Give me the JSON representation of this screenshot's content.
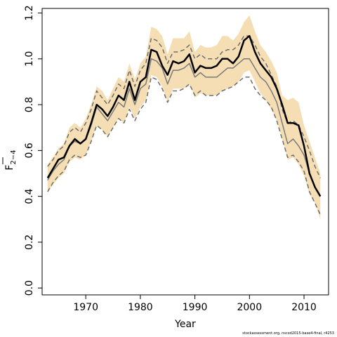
{
  "chart_data": {
    "type": "line",
    "title": "",
    "xlabel": "Year",
    "ylabel": {
      "base": "F",
      "subscript": "2−4"
    },
    "xlim": [
      1962,
      2014.5
    ],
    "ylim": [
      -0.03,
      1.22
    ],
    "xticks": [
      "1970",
      "1980",
      "1990",
      "2000",
      "2010"
    ],
    "yticks": [
      "0.0",
      "0.2",
      "0.4",
      "0.6",
      "0.8",
      "1.0",
      "1.2"
    ],
    "x": [
      1963,
      1964,
      1965,
      1966,
      1967,
      1968,
      1969,
      1970,
      1971,
      1972,
      1973,
      1974,
      1975,
      1976,
      1977,
      1978,
      1979,
      1980,
      1981,
      1982,
      1983,
      1984,
      1985,
      1986,
      1987,
      1988,
      1989,
      1990,
      1991,
      1992,
      1993,
      1994,
      1995,
      1996,
      1997,
      1998,
      1999,
      2000,
      2001,
      2002,
      2003,
      2004,
      2005,
      2006,
      2007,
      2008,
      2009,
      2010,
      2011,
      2012,
      2013
    ],
    "series": [
      {
        "role": "band_upper",
        "color": "#f5deb3",
        "values": [
          0.54,
          0.57,
          0.61,
          0.63,
          0.7,
          0.72,
          0.7,
          0.74,
          0.8,
          0.88,
          0.86,
          0.82,
          0.87,
          0.92,
          0.9,
          0.98,
          0.91,
          0.98,
          1.01,
          1.14,
          1.13,
          1.1,
          1.02,
          1.09,
          1.09,
          1.09,
          1.12,
          1.03,
          1.06,
          1.05,
          1.05,
          1.06,
          1.1,
          1.1,
          1.08,
          1.11,
          1.16,
          1.19,
          1.12,
          1.06,
          1.03,
          0.99,
          0.94,
          0.84,
          0.82,
          0.83,
          0.81,
          0.71,
          0.64,
          0.57,
          0.5
        ]
      },
      {
        "role": "band_lower",
        "color": "#f5deb3",
        "values": [
          0.42,
          0.45,
          0.48,
          0.5,
          0.55,
          0.57,
          0.56,
          0.58,
          0.64,
          0.71,
          0.69,
          0.66,
          0.7,
          0.74,
          0.72,
          0.79,
          0.74,
          0.79,
          0.82,
          0.93,
          0.92,
          0.88,
          0.81,
          0.87,
          0.87,
          0.87,
          0.89,
          0.83,
          0.85,
          0.84,
          0.84,
          0.84,
          0.86,
          0.87,
          0.88,
          0.9,
          0.94,
          0.95,
          0.9,
          0.85,
          0.82,
          0.78,
          0.73,
          0.65,
          0.56,
          0.57,
          0.54,
          0.49,
          0.41,
          0.37,
          0.3
        ]
      },
      {
        "role": "upper_dashed",
        "color": "#6e6e6e",
        "values": [
          0.53,
          0.56,
          0.6,
          0.62,
          0.68,
          0.7,
          0.68,
          0.72,
          0.78,
          0.86,
          0.83,
          0.8,
          0.84,
          0.89,
          0.87,
          0.95,
          0.88,
          0.95,
          0.98,
          1.09,
          1.08,
          1.05,
          0.98,
          1.03,
          1.03,
          1.04,
          1.06,
          1.0,
          1.02,
          1.0,
          1.0,
          1.0,
          1.03,
          1.04,
          1.04,
          1.06,
          1.1,
          1.1,
          1.06,
          1.01,
          0.98,
          0.93,
          0.88,
          0.78,
          0.72,
          0.73,
          0.71,
          0.66,
          0.6,
          0.53,
          0.48
        ]
      },
      {
        "role": "lower_dashed",
        "color": "#6e6e6e",
        "values": [
          0.42,
          0.46,
          0.49,
          0.51,
          0.56,
          0.58,
          0.57,
          0.58,
          0.64,
          0.71,
          0.69,
          0.66,
          0.7,
          0.74,
          0.72,
          0.78,
          0.73,
          0.78,
          0.81,
          0.92,
          0.91,
          0.87,
          0.81,
          0.86,
          0.86,
          0.87,
          0.89,
          0.84,
          0.86,
          0.84,
          0.84,
          0.84,
          0.86,
          0.87,
          0.88,
          0.9,
          0.92,
          0.92,
          0.87,
          0.84,
          0.82,
          0.79,
          0.73,
          0.65,
          0.57,
          0.58,
          0.55,
          0.51,
          0.42,
          0.37,
          0.32
        ]
      },
      {
        "role": "median_grey",
        "color": "#7a7a7a",
        "values": [
          0.47,
          0.51,
          0.54,
          0.56,
          0.62,
          0.64,
          0.63,
          0.65,
          0.71,
          0.79,
          0.76,
          0.73,
          0.77,
          0.81,
          0.79,
          0.87,
          0.8,
          0.87,
          0.89,
          1.0,
          0.99,
          0.96,
          0.89,
          0.95,
          0.95,
          0.96,
          0.98,
          0.92,
          0.94,
          0.92,
          0.92,
          0.92,
          0.94,
          0.96,
          0.96,
          0.98,
          1.0,
          1.0,
          0.96,
          0.92,
          0.9,
          0.86,
          0.81,
          0.72,
          0.63,
          0.65,
          0.62,
          0.58,
          0.5,
          0.44,
          0.4
        ]
      },
      {
        "role": "estimate",
        "color": "#000000",
        "values": [
          0.48,
          0.52,
          0.56,
          0.57,
          0.62,
          0.65,
          0.63,
          0.65,
          0.72,
          0.8,
          0.78,
          0.75,
          0.79,
          0.84,
          0.82,
          0.9,
          0.82,
          0.9,
          0.92,
          1.04,
          1.03,
          0.97,
          0.93,
          0.99,
          0.98,
          0.99,
          1.02,
          0.94,
          0.97,
          0.96,
          0.96,
          0.97,
          1.0,
          1.0,
          0.98,
          1.01,
          1.08,
          1.1,
          1.03,
          0.98,
          0.95,
          0.92,
          0.87,
          0.8,
          0.72,
          0.72,
          0.71,
          0.62,
          0.5,
          0.44,
          0.4
        ]
      }
    ]
  },
  "caption": "stockassessment.org, nscod2015-base4-final, r4253"
}
